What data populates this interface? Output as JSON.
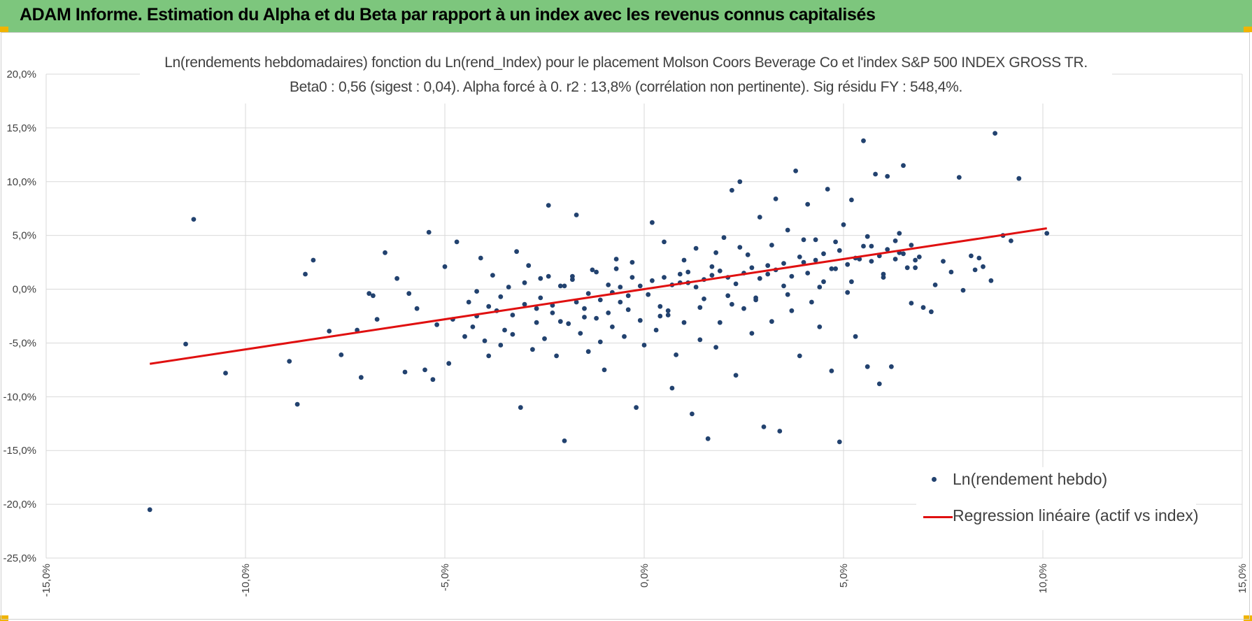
{
  "header": {
    "title": "ADAM Informe. Estimation du Alpha et du Beta par rapport à un index avec les revenus connus capitalisés",
    "background": "#7dc67d",
    "corner_color": "#f0b400"
  },
  "chart_data": {
    "type": "scatter",
    "title": "Ln(rendements hebdomadaires) fonction du Ln(rend_Index) pour le placement Molson Coors Beverage Co et l'index S&P 500 INDEX GROSS TR.",
    "subtitle": "Beta0 : 0,56 (sigest : 0,04).  Alpha forcé à 0. r2 : 13,8% (corrélation non pertinente). Sig résidu FY : 548,4%.",
    "xlim": [
      -0.15,
      0.15
    ],
    "ylim": [
      -0.25,
      0.2
    ],
    "x_ticks": [
      "-15,0%",
      "-10,0%",
      "-5,0%",
      "0,0%",
      "5,0%",
      "10,0%",
      "15,0%"
    ],
    "y_ticks": [
      "20,0%",
      "15,0%",
      "10,0%",
      "5,0%",
      "0,0%",
      "-5,0%",
      "-10,0%",
      "-15,0%",
      "-20,0%",
      "-25,0%"
    ],
    "grid": true,
    "legend_position": "bottom-right",
    "series": [
      {
        "name": "Ln(rendement hebdo)",
        "kind": "points",
        "color": "#22426f",
        "points": [
          [
            -0.124,
            -0.205
          ],
          [
            -0.113,
            0.065
          ],
          [
            -0.115,
            -0.051
          ],
          [
            -0.105,
            -0.078
          ],
          [
            -0.089,
            -0.067
          ],
          [
            -0.087,
            -0.107
          ],
          [
            -0.085,
            0.014
          ],
          [
            -0.083,
            0.027
          ],
          [
            -0.079,
            -0.039
          ],
          [
            -0.076,
            -0.061
          ],
          [
            -0.072,
            -0.038
          ],
          [
            -0.071,
            -0.082
          ],
          [
            -0.069,
            -0.004
          ],
          [
            -0.068,
            -0.006
          ],
          [
            -0.067,
            -0.028
          ],
          [
            -0.065,
            0.034
          ],
          [
            -0.062,
            0.01
          ],
          [
            -0.06,
            -0.077
          ],
          [
            -0.059,
            -0.004
          ],
          [
            -0.057,
            -0.018
          ],
          [
            -0.055,
            -0.075
          ],
          [
            -0.054,
            0.053
          ],
          [
            -0.053,
            -0.084
          ],
          [
            -0.052,
            -0.033
          ],
          [
            -0.05,
            0.021
          ],
          [
            -0.049,
            -0.069
          ],
          [
            -0.048,
            -0.028
          ],
          [
            -0.047,
            0.044
          ],
          [
            -0.045,
            -0.044
          ],
          [
            -0.044,
            -0.012
          ],
          [
            -0.043,
            -0.035
          ],
          [
            -0.042,
            -0.025
          ],
          [
            -0.041,
            0.029
          ],
          [
            -0.04,
            -0.048
          ],
          [
            -0.039,
            -0.062
          ],
          [
            -0.038,
            0.013
          ],
          [
            -0.037,
            -0.02
          ],
          [
            -0.036,
            -0.052
          ],
          [
            -0.035,
            -0.038
          ],
          [
            -0.034,
            0.002
          ],
          [
            -0.033,
            -0.042
          ],
          [
            -0.032,
            0.035
          ],
          [
            -0.031,
            -0.11
          ],
          [
            -0.03,
            -0.014
          ],
          [
            -0.029,
            0.022
          ],
          [
            -0.028,
            -0.056
          ],
          [
            -0.027,
            -0.031
          ],
          [
            -0.026,
            0.01
          ],
          [
            -0.025,
            -0.046
          ],
          [
            -0.024,
            0.078
          ],
          [
            -0.023,
            -0.022
          ],
          [
            -0.022,
            -0.062
          ],
          [
            -0.021,
            0.003
          ],
          [
            -0.02,
            -0.141
          ],
          [
            -0.019,
            -0.032
          ],
          [
            -0.018,
            0.012
          ],
          [
            -0.017,
            0.069
          ],
          [
            -0.016,
            -0.041
          ],
          [
            -0.015,
            -0.018
          ],
          [
            -0.014,
            -0.058
          ],
          [
            -0.013,
            0.018
          ],
          [
            -0.012,
            -0.027
          ],
          [
            -0.011,
            -0.049
          ],
          [
            -0.01,
            -0.075
          ],
          [
            -0.009,
            0.004
          ],
          [
            -0.008,
            -0.035
          ],
          [
            -0.007,
            0.028
          ],
          [
            -0.006,
            -0.012
          ],
          [
            -0.005,
            -0.044
          ],
          [
            -0.004,
            -0.019
          ],
          [
            -0.003,
            0.011
          ],
          [
            -0.002,
            -0.11
          ],
          [
            -0.001,
            -0.029
          ],
          [
            0.0,
            -0.052
          ],
          [
            0.001,
            -0.005
          ],
          [
            0.002,
            0.062
          ],
          [
            0.003,
            -0.038
          ],
          [
            0.004,
            -0.016
          ],
          [
            0.005,
            0.044
          ],
          [
            0.006,
            -0.024
          ],
          [
            0.007,
            -0.092
          ],
          [
            0.008,
            -0.061
          ],
          [
            0.009,
            0.006
          ],
          [
            0.01,
            -0.031
          ],
          [
            0.011,
            0.016
          ],
          [
            0.012,
            -0.116
          ],
          [
            0.013,
            0.038
          ],
          [
            0.014,
            -0.047
          ],
          [
            0.015,
            -0.009
          ],
          [
            0.016,
            -0.139
          ],
          [
            0.017,
            0.021
          ],
          [
            0.018,
            -0.054
          ],
          [
            0.019,
            -0.031
          ],
          [
            0.02,
            0.048
          ],
          [
            0.021,
            -0.006
          ],
          [
            0.022,
            0.092
          ],
          [
            0.023,
            -0.08
          ],
          [
            0.024,
            0.1
          ],
          [
            0.025,
            -0.018
          ],
          [
            0.026,
            0.032
          ],
          [
            0.027,
            -0.041
          ],
          [
            0.028,
            -0.008
          ],
          [
            0.029,
            0.067
          ],
          [
            0.03,
            -0.128
          ],
          [
            0.031,
            0.014
          ],
          [
            0.032,
            -0.03
          ],
          [
            0.033,
            0.084
          ],
          [
            0.034,
            -0.132
          ],
          [
            0.035,
            0.003
          ],
          [
            0.036,
            0.055
          ],
          [
            0.037,
            -0.02
          ],
          [
            0.038,
            0.11
          ],
          [
            0.039,
            -0.062
          ],
          [
            0.04,
            0.025
          ],
          [
            0.041,
            0.079
          ],
          [
            0.042,
            -0.012
          ],
          [
            0.043,
            0.046
          ],
          [
            0.044,
            -0.035
          ],
          [
            0.045,
            0.007
          ],
          [
            0.046,
            0.093
          ],
          [
            0.047,
            -0.076
          ],
          [
            0.048,
            0.019
          ],
          [
            0.049,
            -0.142
          ],
          [
            0.05,
            0.06
          ],
          [
            0.051,
            -0.003
          ],
          [
            0.052,
            0.083
          ],
          [
            0.053,
            -0.044
          ],
          [
            0.054,
            0.028
          ],
          [
            0.055,
            0.138
          ],
          [
            0.056,
            -0.072
          ],
          [
            0.057,
            0.04
          ],
          [
            0.058,
            0.107
          ],
          [
            0.059,
            -0.088
          ],
          [
            0.06,
            0.011
          ],
          [
            0.061,
            0.105
          ],
          [
            0.062,
            -0.072
          ],
          [
            0.063,
            0.045
          ],
          [
            0.064,
            0.034
          ],
          [
            0.065,
            0.115
          ],
          [
            0.066,
            0.02
          ],
          [
            0.067,
            -0.013
          ],
          [
            0.068,
            0.027
          ],
          [
            0.07,
            -0.017
          ],
          [
            0.072,
            -0.021
          ],
          [
            0.073,
            0.004
          ],
          [
            0.075,
            0.026
          ],
          [
            0.077,
            0.016
          ],
          [
            0.079,
            0.104
          ],
          [
            0.08,
            -0.001
          ],
          [
            0.082,
            0.031
          ],
          [
            0.083,
            0.018
          ],
          [
            0.084,
            0.029
          ],
          [
            0.085,
            0.021
          ],
          [
            0.087,
            0.008
          ],
          [
            0.088,
            0.145
          ],
          [
            0.09,
            0.05
          ],
          [
            0.092,
            0.045
          ],
          [
            0.094,
            0.103
          ],
          [
            0.101,
            0.052
          ],
          [
            -0.001,
            0.003
          ],
          [
            0.002,
            0.008
          ],
          [
            -0.004,
            -0.006
          ],
          [
            0.005,
            0.011
          ],
          [
            -0.006,
            0.002
          ],
          [
            0.007,
            0.004
          ],
          [
            -0.008,
            -0.003
          ],
          [
            0.009,
            0.014
          ],
          [
            0.011,
            0.006
          ],
          [
            -0.011,
            -0.01
          ],
          [
            0.013,
            0.002
          ],
          [
            0.015,
            0.009
          ],
          [
            -0.014,
            -0.004
          ],
          [
            0.017,
            0.013
          ],
          [
            0.019,
            0.017
          ],
          [
            -0.017,
            -0.012
          ],
          [
            0.021,
            0.011
          ],
          [
            0.023,
            0.005
          ],
          [
            -0.02,
            0.003
          ],
          [
            0.025,
            0.015
          ],
          [
            0.027,
            0.02
          ],
          [
            -0.023,
            -0.015
          ],
          [
            0.029,
            0.01
          ],
          [
            0.031,
            0.022
          ],
          [
            0.033,
            0.018
          ],
          [
            -0.026,
            -0.008
          ],
          [
            0.035,
            0.024
          ],
          [
            0.037,
            0.012
          ],
          [
            0.039,
            0.03
          ],
          [
            0.041,
            0.015
          ],
          [
            0.043,
            0.027
          ],
          [
            0.045,
            0.033
          ],
          [
            0.047,
            0.019
          ],
          [
            0.049,
            0.036
          ],
          [
            0.051,
            0.023
          ],
          [
            0.053,
            0.029
          ],
          [
            0.055,
            0.04
          ],
          [
            0.057,
            0.026
          ],
          [
            0.059,
            0.031
          ],
          [
            0.061,
            0.037
          ],
          [
            0.063,
            0.028
          ],
          [
            0.065,
            0.033
          ],
          [
            0.067,
            0.041
          ],
          [
            0.069,
            0.03
          ],
          [
            -0.003,
            0.025
          ],
          [
            0.004,
            -0.025
          ],
          [
            -0.007,
            0.019
          ],
          [
            0.006,
            -0.02
          ],
          [
            -0.009,
            -0.022
          ],
          [
            0.01,
            0.027
          ],
          [
            -0.012,
            0.016
          ],
          [
            0.014,
            -0.017
          ],
          [
            -0.015,
            -0.026
          ],
          [
            0.018,
            0.034
          ],
          [
            -0.018,
            0.009
          ],
          [
            0.022,
            -0.014
          ],
          [
            -0.021,
            -0.03
          ],
          [
            0.024,
            0.039
          ],
          [
            -0.024,
            0.012
          ],
          [
            0.028,
            -0.01
          ],
          [
            -0.027,
            -0.018
          ],
          [
            0.032,
            0.041
          ],
          [
            -0.03,
            0.006
          ],
          [
            0.036,
            -0.005
          ],
          [
            -0.033,
            -0.024
          ],
          [
            0.04,
            0.046
          ],
          [
            -0.036,
            -0.007
          ],
          [
            0.044,
            0.002
          ],
          [
            -0.039,
            -0.016
          ],
          [
            0.048,
            0.044
          ],
          [
            -0.042,
            -0.002
          ],
          [
            0.052,
            0.007
          ],
          [
            0.056,
            0.049
          ],
          [
            0.06,
            0.014
          ],
          [
            0.064,
            0.052
          ],
          [
            0.068,
            0.02
          ]
        ]
      },
      {
        "name": "Regression linéaire (actif vs index)",
        "kind": "line",
        "color": "#e01010",
        "x": [
          -0.124,
          0.101
        ],
        "y": [
          -0.0694,
          0.0566
        ]
      }
    ]
  }
}
